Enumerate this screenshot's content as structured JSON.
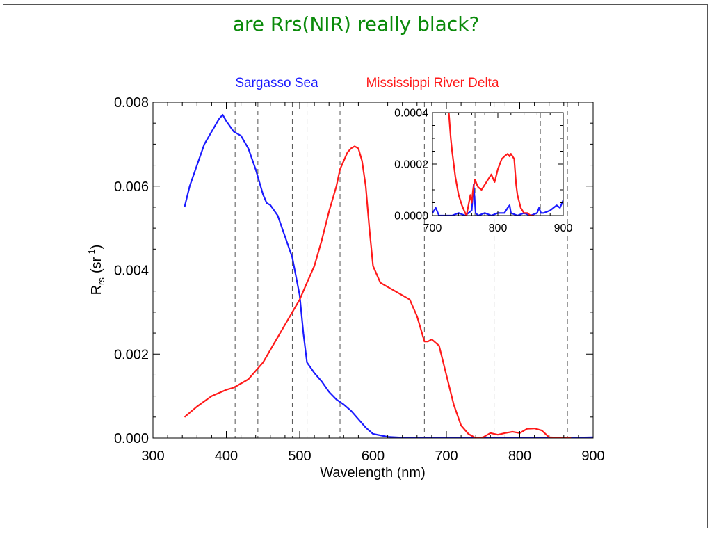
{
  "slide": {
    "title": "are Rrs(NIR) really black?",
    "title_color": "#0a8a0a"
  },
  "chart_data": [
    {
      "type": "line",
      "xlabel": "Wavelength (nm)",
      "ylabel": "R",
      "ylabel_sub": "rs",
      "ylabel_unit_open": "(sr",
      "ylabel_unit_sup": "-1",
      "ylabel_unit_close": ")",
      "xlim": [
        300,
        900
      ],
      "ylim": [
        0,
        0.008
      ],
      "xticks": [
        300,
        400,
        500,
        600,
        700,
        800,
        900
      ],
      "yticks": [
        0.0,
        0.002,
        0.004,
        0.006,
        0.008
      ],
      "ytick_labels": [
        "0.000",
        "0.002",
        "0.004",
        "0.006",
        "0.008"
      ],
      "vlines": [
        412,
        443,
        490,
        510,
        555,
        670,
        765,
        865
      ],
      "legend": "top-center",
      "series": [
        {
          "name": "Sargasso Sea",
          "color": "#1a1aff",
          "x": [
            343,
            350,
            360,
            370,
            380,
            390,
            395,
            400,
            410,
            420,
            430,
            440,
            450,
            455,
            460,
            470,
            480,
            490,
            500,
            505,
            510,
            520,
            530,
            540,
            550,
            560,
            570,
            580,
            590,
            600,
            620,
            640,
            660,
            680,
            700,
            750,
            800,
            850,
            900
          ],
          "y": [
            0.0055,
            0.006,
            0.0065,
            0.007,
            0.0073,
            0.0076,
            0.0077,
            0.00755,
            0.0073,
            0.0072,
            0.0069,
            0.0064,
            0.0058,
            0.0056,
            0.00555,
            0.0053,
            0.0048,
            0.0043,
            0.0034,
            0.0025,
            0.0018,
            0.00155,
            0.00135,
            0.0011,
            0.00092,
            0.0008,
            0.00065,
            0.00045,
            0.00025,
            0.0001,
            3e-05,
            1e-05,
            0.0,
            0.0,
            0.0,
            0.0,
            0.0,
            0.0,
            2e-05
          ]
        },
        {
          "name": "Mississippi River Delta",
          "color": "#ff1a1a",
          "x": [
            343,
            360,
            380,
            400,
            410,
            420,
            430,
            440,
            450,
            460,
            470,
            480,
            490,
            500,
            510,
            520,
            530,
            540,
            550,
            555,
            560,
            565,
            570,
            575,
            580,
            585,
            590,
            595,
            600,
            610,
            620,
            630,
            640,
            650,
            660,
            670,
            675,
            680,
            690,
            700,
            710,
            720,
            730,
            740,
            750,
            760,
            770,
            780,
            790,
            800,
            810,
            820,
            830,
            840,
            850,
            860,
            870
          ],
          "y": [
            0.0005,
            0.00075,
            0.001,
            0.00115,
            0.0012,
            0.0013,
            0.0014,
            0.0016,
            0.0018,
            0.0021,
            0.0024,
            0.0027,
            0.003,
            0.0033,
            0.0037,
            0.0041,
            0.0047,
            0.0054,
            0.006,
            0.0064,
            0.0066,
            0.0068,
            0.0069,
            0.00695,
            0.0069,
            0.0066,
            0.006,
            0.005,
            0.0041,
            0.0037,
            0.0036,
            0.0035,
            0.0034,
            0.0033,
            0.0029,
            0.0023,
            0.0023,
            0.00235,
            0.0022,
            0.0015,
            0.0008,
            0.0003,
            0.0001,
            0.0,
            2e-05,
            0.00012,
            8e-05,
            0.00012,
            0.00015,
            0.00012,
            0.00022,
            0.00023,
            0.00018,
            2e-05,
            1e-05,
            0.0,
            0.0
          ]
        }
      ]
    },
    {
      "type": "line",
      "position": "inset",
      "xlim": [
        700,
        900
      ],
      "ylim": [
        0,
        0.0004
      ],
      "xticks": [
        700,
        800,
        900
      ],
      "yticks": [
        0.0,
        0.0002,
        0.0004
      ],
      "ytick_labels": [
        "0.0000",
        "0.0002",
        "0.0004"
      ],
      "vlines": [
        765,
        865
      ],
      "series": [
        {
          "name": "Sargasso Sea",
          "color": "#1a1aff",
          "x": [
            700,
            705,
            710,
            720,
            730,
            740,
            750,
            755,
            760,
            763,
            766,
            770,
            780,
            790,
            800,
            810,
            815,
            818,
            820,
            830,
            840,
            850,
            860,
            863,
            866,
            870,
            880,
            890,
            895,
            900
          ],
          "y": [
            1e-05,
            3e-05,
            0.0,
            0.0,
            0.0,
            1e-05,
            0.0,
            1e-05,
            2e-05,
            0.00012,
            1e-05,
            0.0,
            1e-05,
            0.0,
            1e-05,
            1e-05,
            3e-05,
            4e-05,
            1e-05,
            0.0,
            1e-05,
            0.0,
            1e-05,
            3e-05,
            1e-05,
            1e-05,
            2e-05,
            4e-05,
            3e-05,
            6e-05
          ]
        },
        {
          "name": "Mississippi River Delta",
          "color": "#ff1a1a",
          "x": [
            725,
            728,
            730,
            735,
            740,
            745,
            750,
            752,
            755,
            758,
            760,
            762,
            765,
            768,
            770,
            775,
            780,
            785,
            790,
            795,
            800,
            803,
            806,
            810,
            815,
            818,
            820,
            825,
            828,
            830,
            835,
            840,
            845,
            850,
            855
          ],
          "y": [
            0.0004,
            0.0003,
            0.00025,
            0.00015,
            8e-05,
            4e-05,
            1e-05,
            0.0,
            4e-05,
            8e-05,
            5e-05,
            0.0001,
            0.00014,
            0.00012,
            0.00011,
            0.0001,
            0.00012,
            0.00014,
            0.00016,
            0.00013,
            0.00018,
            0.0002,
            0.00022,
            0.00023,
            0.00024,
            0.00023,
            0.00024,
            0.00022,
            0.00012,
            8e-05,
            3e-05,
            1e-05,
            1e-05,
            0.0,
            0.0
          ]
        }
      ]
    }
  ]
}
